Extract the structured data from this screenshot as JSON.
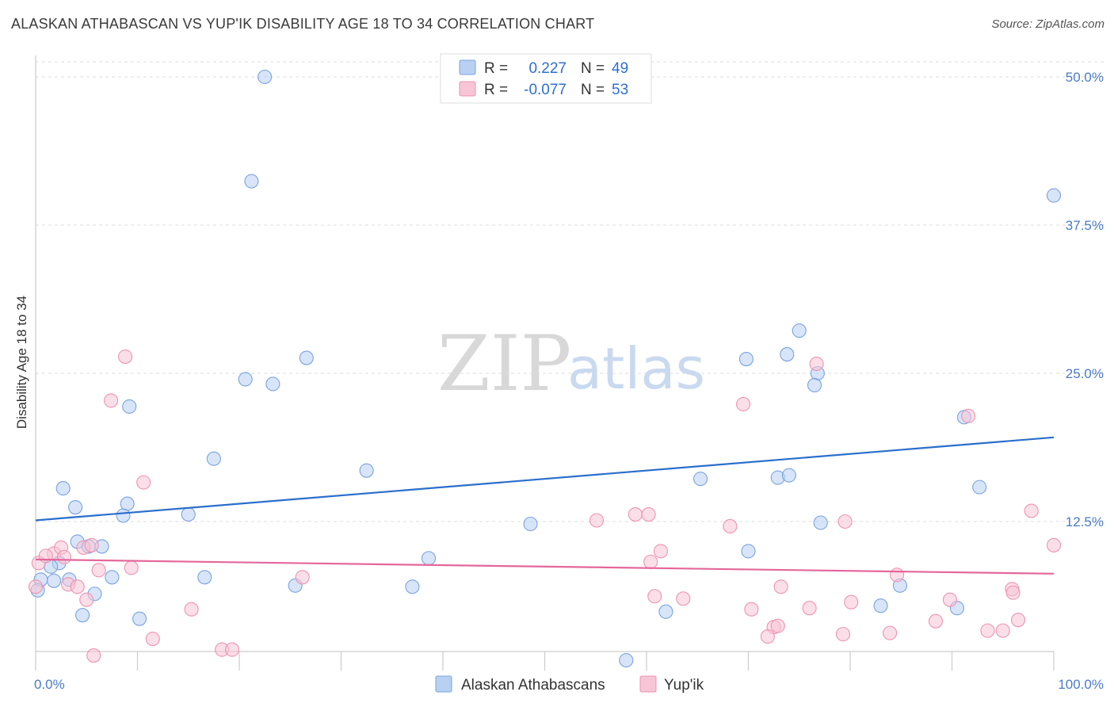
{
  "title": "ALASKAN ATHABASCAN VS YUP'IK DISABILITY AGE 18 TO 34 CORRELATION CHART",
  "source": "Source: ZipAtlas.com",
  "watermark": {
    "part1": "ZIP",
    "part2": "atlas"
  },
  "legend": {
    "r_label": "R =",
    "n_label": "N =",
    "rows": [
      {
        "r": "0.227",
        "n": "49"
      },
      {
        "r": "-0.077",
        "n": "53"
      }
    ]
  },
  "colors": {
    "blue_fill": "#b8d0f2",
    "blue_stroke": "#7aa3e0",
    "blue_line": "#2a6fcc",
    "pink_fill": "#f7c5d5",
    "pink_stroke": "#ee93b0",
    "pink_line": "#e4679a"
  },
  "chart_data": {
    "type": "scatter",
    "title": "ALASKAN ATHABASCAN VS YUP'IK DISABILITY AGE 18 TO 34 CORRELATION CHART",
    "xlabel": "",
    "ylabel": "Disability Age 18 to 34",
    "xlim": [
      0,
      100
    ],
    "ylim": [
      0,
      52
    ],
    "x_tick_labels": [
      "0.0%",
      "100.0%"
    ],
    "y_ticks": [
      12.5,
      25.0,
      37.5,
      50.0
    ],
    "y_tick_labels": [
      "12.5%",
      "25.0%",
      "37.5%",
      "50.0%"
    ],
    "grid": true,
    "legend_position": "top-center",
    "series": [
      {
        "name": "Alaskan Athabascans",
        "r": 0.227,
        "n": 49,
        "trend": {
          "x": [
            0,
            100
          ],
          "y": [
            12.6,
            19.6
          ]
        },
        "points": [
          [
            22.5,
            50.0
          ],
          [
            21.2,
            41.2
          ],
          [
            100.0,
            40.0
          ],
          [
            75.0,
            28.6
          ],
          [
            73.8,
            26.6
          ],
          [
            26.6,
            26.3
          ],
          [
            69.8,
            26.2
          ],
          [
            20.6,
            24.5
          ],
          [
            23.3,
            24.1
          ],
          [
            76.8,
            25.0
          ],
          [
            76.5,
            24.0
          ],
          [
            9.2,
            22.2
          ],
          [
            91.2,
            21.3
          ],
          [
            17.5,
            17.8
          ],
          [
            32.5,
            16.8
          ],
          [
            2.7,
            15.3
          ],
          [
            92.7,
            15.4
          ],
          [
            65.3,
            16.1
          ],
          [
            72.9,
            16.2
          ],
          [
            74.0,
            16.4
          ],
          [
            3.9,
            13.7
          ],
          [
            9.0,
            14.0
          ],
          [
            8.6,
            13.0
          ],
          [
            15.0,
            13.1
          ],
          [
            48.6,
            12.3
          ],
          [
            77.1,
            12.4
          ],
          [
            4.1,
            10.8
          ],
          [
            5.2,
            10.4
          ],
          [
            6.5,
            10.4
          ],
          [
            70.0,
            10.0
          ],
          [
            2.3,
            9.0
          ],
          [
            38.6,
            9.4
          ],
          [
            0.5,
            7.6
          ],
          [
            1.8,
            7.5
          ],
          [
            3.3,
            7.6
          ],
          [
            7.5,
            7.8
          ],
          [
            16.6,
            7.8
          ],
          [
            25.5,
            7.1
          ],
          [
            37.0,
            7.0
          ],
          [
            84.9,
            7.1
          ],
          [
            5.8,
            6.4
          ],
          [
            83.0,
            5.4
          ],
          [
            90.5,
            5.2
          ],
          [
            4.6,
            4.6
          ],
          [
            10.2,
            4.3
          ],
          [
            61.9,
            4.9
          ],
          [
            58.0,
            0.8
          ],
          [
            0.2,
            6.7
          ],
          [
            1.5,
            8.7
          ]
        ]
      },
      {
        "name": "Yup'ik",
        "r": -0.077,
        "n": 53,
        "trend": {
          "x": [
            0,
            100
          ],
          "y": [
            9.3,
            8.1
          ]
        },
        "points": [
          [
            8.8,
            26.4
          ],
          [
            76.7,
            25.8
          ],
          [
            7.4,
            22.7
          ],
          [
            69.5,
            22.4
          ],
          [
            91.6,
            21.4
          ],
          [
            10.6,
            15.8
          ],
          [
            97.8,
            13.4
          ],
          [
            58.9,
            13.1
          ],
          [
            60.2,
            13.1
          ],
          [
            55.1,
            12.6
          ],
          [
            68.2,
            12.1
          ],
          [
            79.5,
            12.5
          ],
          [
            100.0,
            10.5
          ],
          [
            1.8,
            9.8
          ],
          [
            2.5,
            10.3
          ],
          [
            2.8,
            9.5
          ],
          [
            4.7,
            10.3
          ],
          [
            5.5,
            10.5
          ],
          [
            61.4,
            10.0
          ],
          [
            60.4,
            9.1
          ],
          [
            0.3,
            9.0
          ],
          [
            1.0,
            9.6
          ],
          [
            6.2,
            8.4
          ],
          [
            9.4,
            8.6
          ],
          [
            26.2,
            7.8
          ],
          [
            84.6,
            8.0
          ],
          [
            3.2,
            7.2
          ],
          [
            4.1,
            7.0
          ],
          [
            5.0,
            5.9
          ],
          [
            60.8,
            6.2
          ],
          [
            63.6,
            6.0
          ],
          [
            73.2,
            7.0
          ],
          [
            95.9,
            6.8
          ],
          [
            96.0,
            6.5
          ],
          [
            80.1,
            5.7
          ],
          [
            89.8,
            5.9
          ],
          [
            15.3,
            5.1
          ],
          [
            70.3,
            5.1
          ],
          [
            76.0,
            5.2
          ],
          [
            88.4,
            4.1
          ],
          [
            96.5,
            4.2
          ],
          [
            72.5,
            3.6
          ],
          [
            72.9,
            3.7
          ],
          [
            83.9,
            3.1
          ],
          [
            93.5,
            3.3
          ],
          [
            95.0,
            3.3
          ],
          [
            11.5,
            2.6
          ],
          [
            71.9,
            2.8
          ],
          [
            79.3,
            3.0
          ],
          [
            18.3,
            1.7
          ],
          [
            19.3,
            1.7
          ],
          [
            5.7,
            1.2
          ],
          [
            0.0,
            7.0
          ]
        ]
      }
    ]
  }
}
